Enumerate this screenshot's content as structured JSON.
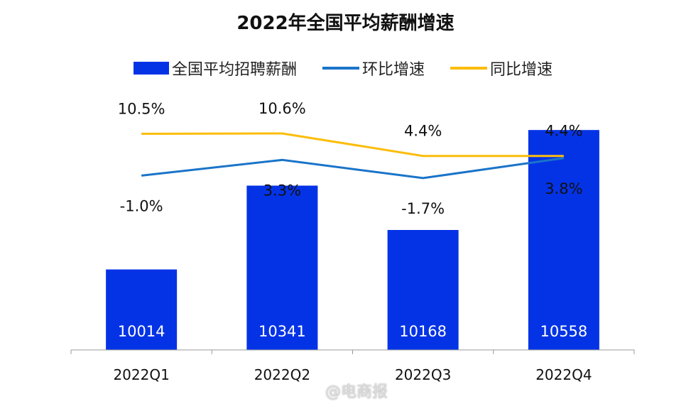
{
  "chart_data": {
    "type": "bar",
    "title": "2022年全国平均薪酬增速",
    "categories": [
      "2022Q1",
      "2022Q2",
      "2022Q3",
      "2022Q4"
    ],
    "series": [
      {
        "name": "全国平均招聘薪酬",
        "type": "bar",
        "values": [
          10014,
          10341,
          10168,
          10558
        ],
        "labels": [
          "10014",
          "10341",
          "10168",
          "10558"
        ],
        "color": "#0433e6"
      },
      {
        "name": "环比增速",
        "type": "line",
        "axis": "secondary",
        "values": [
          -1.0,
          3.3,
          -1.7,
          3.8
        ],
        "labels": [
          "-1.0%",
          "3.3%",
          "-1.7%",
          "3.8%"
        ],
        "color": "#1a74c9"
      },
      {
        "name": "同比增速",
        "type": "line",
        "axis": "secondary",
        "values": [
          10.5,
          10.6,
          4.4,
          4.4
        ],
        "labels": [
          "10.5%",
          "10.6%",
          "4.4%",
          "4.4%"
        ],
        "color": "#fbbd0a"
      }
    ],
    "ylim": [
      9700,
      10600
    ],
    "y2lim": [
      -49,
      14.5
    ],
    "grid": false,
    "legend_position": "top",
    "y_axis_visible": false
  },
  "watermark": "@电商报"
}
